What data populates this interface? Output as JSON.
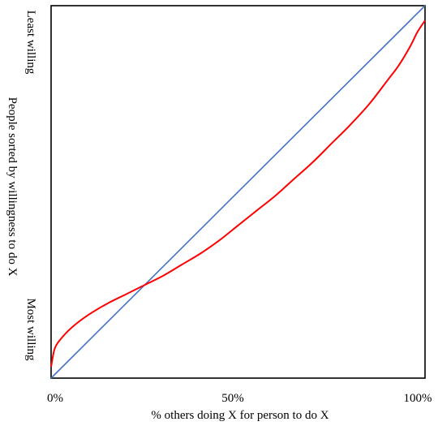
{
  "chart_data": {
    "type": "line",
    "title": "",
    "xlabel": "% others doing X for person to do X",
    "ylabel": "People sorted by willingness to do X",
    "ylabel_top": "Least willing",
    "ylabel_bottom": "Most willing",
    "xlim": [
      0,
      100
    ],
    "ylim": [
      0,
      100
    ],
    "x_tick_labels": [
      "0%",
      "50%",
      "100%"
    ],
    "x_ticks": [
      0,
      50,
      100
    ],
    "grid": false,
    "series": [
      {
        "color": "#4472c4",
        "x": [
          0,
          100
        ],
        "y": [
          0,
          100
        ]
      },
      {
        "color": "#ff0000",
        "x": [
          0,
          1,
          3,
          6,
          10,
          15,
          20,
          25,
          30,
          35,
          40,
          45,
          50,
          55,
          60,
          65,
          70,
          75,
          80,
          85,
          90,
          93,
          96,
          98,
          100
        ],
        "y": [
          3,
          8,
          11,
          14,
          17,
          20,
          22.5,
          25,
          27.5,
          30.5,
          33.5,
          37,
          41,
          45,
          49,
          53.5,
          58,
          63,
          68,
          73.5,
          80,
          84,
          89,
          93,
          96
        ]
      }
    ]
  }
}
